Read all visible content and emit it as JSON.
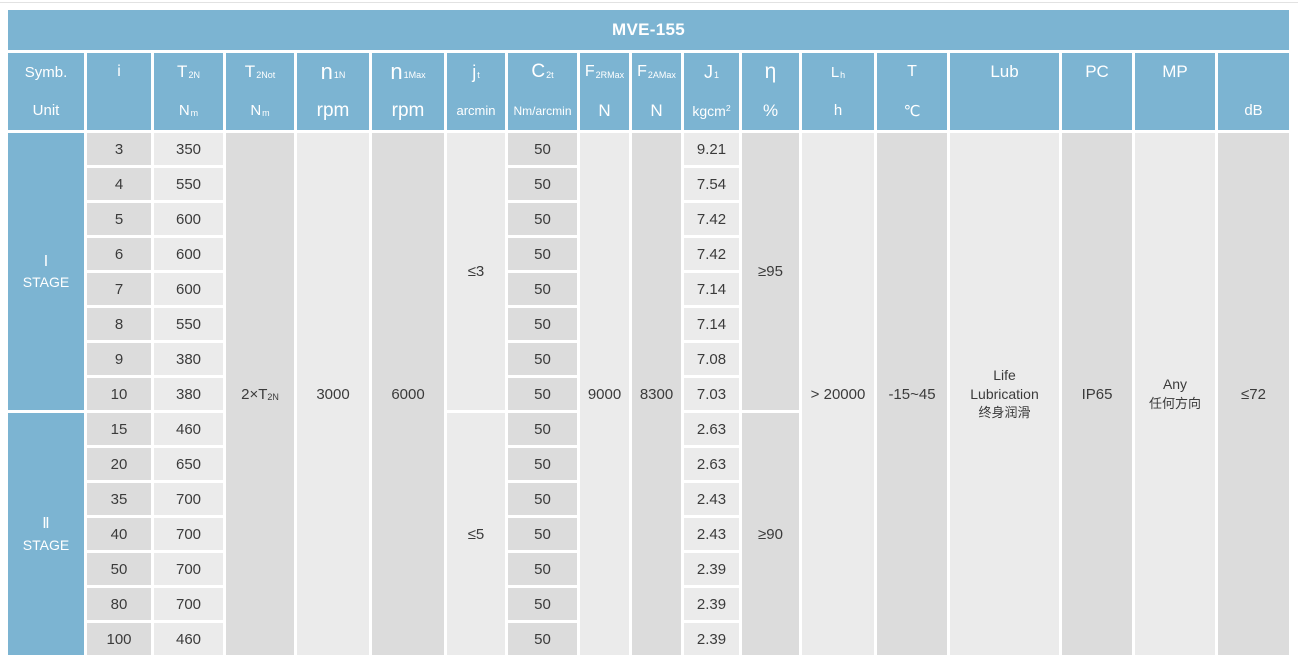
{
  "title": "MVE-155",
  "colors": {
    "header_blue": "#7cb4d2",
    "cell_dark": "#dcdcdc",
    "cell_light": "#ebebeb",
    "text": "#3b3b3b",
    "header_text": "#ffffff"
  },
  "header": {
    "symb_label": "Symb.",
    "unit_label": "Unit",
    "columns": [
      {
        "id": "i",
        "sym": "i",
        "sym_sub": "",
        "unit": "",
        "unit_sub": "",
        "unit_sup": ""
      },
      {
        "id": "t2n",
        "sym": "T",
        "sym_sub": "2N",
        "unit": "N",
        "unit_sub": "m",
        "unit_sup": ""
      },
      {
        "id": "t2not",
        "sym": "T",
        "sym_sub": "2Not",
        "unit": "N",
        "unit_sub": "m",
        "unit_sup": ""
      },
      {
        "id": "n1n",
        "sym": "n",
        "sym_sub": "1N",
        "unit": "rpm",
        "unit_sub": "",
        "unit_sup": ""
      },
      {
        "id": "n1max",
        "sym": "n",
        "sym_sub": "1Max",
        "unit": "rpm",
        "unit_sub": "",
        "unit_sup": ""
      },
      {
        "id": "jt",
        "sym": "j",
        "sym_sub": "t",
        "unit": "arcmin",
        "unit_sub": "",
        "unit_sup": ""
      },
      {
        "id": "c2t",
        "sym": "C",
        "sym_sub": "2t",
        "unit": "Nm/arcmin",
        "unit_sub": "",
        "unit_sup": ""
      },
      {
        "id": "f2rmax",
        "sym": "F",
        "sym_sub": "2RMax",
        "unit": "N",
        "unit_sub": "",
        "unit_sup": ""
      },
      {
        "id": "f2amax",
        "sym": "F",
        "sym_sub": "2AMax",
        "unit": "N",
        "unit_sub": "",
        "unit_sup": ""
      },
      {
        "id": "j1",
        "sym": "J",
        "sym_sub": "1",
        "unit": "kgcm",
        "unit_sub": "",
        "unit_sup": "2"
      },
      {
        "id": "eta",
        "sym": "η",
        "sym_sub": "",
        "unit": "%",
        "unit_sub": "",
        "unit_sup": ""
      },
      {
        "id": "lh",
        "sym": "L",
        "sym_sub": "h",
        "unit": "h",
        "unit_sub": "",
        "unit_sup": ""
      },
      {
        "id": "t",
        "sym": "T",
        "sym_sub": "",
        "unit": "℃",
        "unit_sub": "",
        "unit_sup": ""
      },
      {
        "id": "lub",
        "sym": "Lub",
        "sym_sub": "",
        "unit": "",
        "unit_sub": "",
        "unit_sup": ""
      },
      {
        "id": "pc",
        "sym": "PC",
        "sym_sub": "",
        "unit": "",
        "unit_sub": "",
        "unit_sup": ""
      },
      {
        "id": "mp",
        "sym": "MP",
        "sym_sub": "",
        "unit": "",
        "unit_sub": "",
        "unit_sup": ""
      },
      {
        "id": "db",
        "sym": "",
        "sym_sub": "",
        "unit": "dB",
        "unit_sub": "",
        "unit_sup": ""
      }
    ]
  },
  "stages": [
    {
      "numeral": "Ⅰ",
      "label": "STAGE",
      "jt": "≤3",
      "eta": "≥95",
      "rows": [
        {
          "i": "3",
          "t2n": "350",
          "c2t": "50",
          "j1": "9.21"
        },
        {
          "i": "4",
          "t2n": "550",
          "c2t": "50",
          "j1": "7.54"
        },
        {
          "i": "5",
          "t2n": "600",
          "c2t": "50",
          "j1": "7.42"
        },
        {
          "i": "6",
          "t2n": "600",
          "c2t": "50",
          "j1": "7.42"
        },
        {
          "i": "7",
          "t2n": "600",
          "c2t": "50",
          "j1": "7.14"
        },
        {
          "i": "8",
          "t2n": "550",
          "c2t": "50",
          "j1": "7.14"
        },
        {
          "i": "9",
          "t2n": "380",
          "c2t": "50",
          "j1": "7.08"
        },
        {
          "i": "10",
          "t2n": "380",
          "c2t": "50",
          "j1": "7.03"
        }
      ]
    },
    {
      "numeral": "Ⅱ",
      "label": "STAGE",
      "jt": "≤5",
      "eta": "≥90",
      "rows": [
        {
          "i": "15",
          "t2n": "460",
          "c2t": "50",
          "j1": "2.63"
        },
        {
          "i": "20",
          "t2n": "650",
          "c2t": "50",
          "j1": "2.63"
        },
        {
          "i": "35",
          "t2n": "700",
          "c2t": "50",
          "j1": "2.43"
        },
        {
          "i": "40",
          "t2n": "700",
          "c2t": "50",
          "j1": "2.43"
        },
        {
          "i": "50",
          "t2n": "700",
          "c2t": "50",
          "j1": "2.39"
        },
        {
          "i": "80",
          "t2n": "700",
          "c2t": "50",
          "j1": "2.39"
        },
        {
          "i": "100",
          "t2n": "460",
          "c2t": "50",
          "j1": "2.39"
        }
      ]
    }
  ],
  "merged": {
    "t2not_base": "2×T",
    "t2not_sub": "2N",
    "n1n": "3000",
    "n1max": "6000",
    "f2rmax": "9000",
    "f2amax": "8300",
    "lh": "> 20000",
    "t": "-15~45",
    "lub_lines": [
      "Life",
      "Lubrication",
      "终身润滑"
    ],
    "pc": "IP65",
    "mp_lines": [
      "Any",
      "任何方向"
    ],
    "db": "≤72"
  }
}
